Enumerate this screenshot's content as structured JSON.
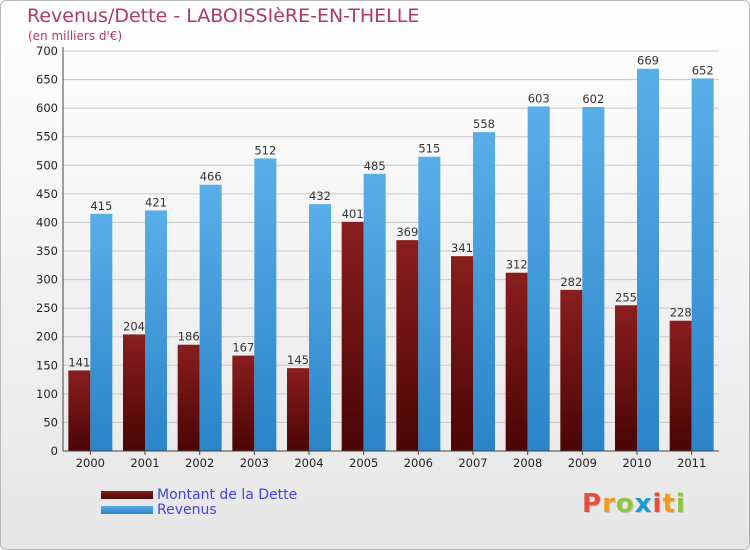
{
  "chart_data": {
    "type": "bar",
    "title": "Revenus/Dette - LABOISSIèRE-EN-THELLE",
    "subtitle": "(en milliers d'€)",
    "categories": [
      "2000",
      "2001",
      "2002",
      "2003",
      "2004",
      "2005",
      "2006",
      "2007",
      "2008",
      "2009",
      "2010",
      "2011"
    ],
    "series": [
      {
        "name": "Montant de la Dette",
        "color": "#6e1010",
        "values": [
          141,
          204,
          186,
          167,
          145,
          401,
          369,
          341,
          312,
          282,
          255,
          228
        ]
      },
      {
        "name": "Revenus",
        "color": "#3c9ae0",
        "values": [
          415,
          421,
          466,
          512,
          432,
          485,
          515,
          558,
          603,
          602,
          669,
          652
        ]
      }
    ],
    "yticks": [
      0,
      50,
      100,
      150,
      200,
      250,
      300,
      350,
      400,
      450,
      500,
      550,
      600,
      650,
      700
    ],
    "ylim": [
      0,
      700
    ],
    "xlabel": "",
    "ylabel": "",
    "grid": true,
    "legend": "bottom-left"
  },
  "logo": {
    "letters": [
      "P",
      "r",
      "o",
      "x",
      "i",
      "t",
      "i"
    ],
    "colors": [
      "#e94e3c",
      "#f29a1f",
      "#8cc63f",
      "#1c9ad6",
      "#e94e3c",
      "#f29a1f",
      "#8cc63f"
    ]
  }
}
